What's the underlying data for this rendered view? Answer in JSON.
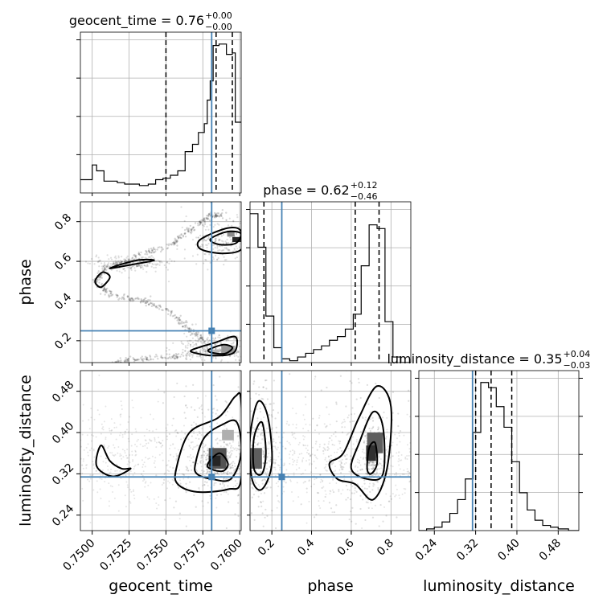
{
  "chart_data": {
    "type": "corner",
    "parameters": [
      "geocent_time",
      "phase",
      "luminosity_distance"
    ],
    "axis_labels": {
      "geocent_time": "geocent_time",
      "phase": "phase",
      "luminosity_distance": "luminosity_distance"
    },
    "ranges": {
      "geocent_time": [
        0.7492,
        0.7601
      ],
      "phase": [
        0.09,
        0.9
      ],
      "luminosity_distance": [
        0.21,
        0.52
      ]
    },
    "ticks": {
      "geocent_time": {
        "values": [
          0.75,
          0.7525,
          0.755,
          0.7575,
          0.76
        ],
        "labels": [
          "0.7500",
          "0.7525",
          "0.7550",
          "0.7575",
          "0.7600"
        ]
      },
      "phase": {
        "values": [
          0.2,
          0.4,
          0.6,
          0.8
        ],
        "labels": [
          "0.2",
          "0.4",
          "0.6",
          "0.8"
        ]
      },
      "luminosity_distance": {
        "values": [
          0.24,
          0.32,
          0.4,
          0.48
        ],
        "labels": [
          "0.24",
          "0.32",
          "0.40",
          "0.48"
        ]
      }
    },
    "titles": {
      "geocent_time": {
        "text": "geocent_time = 0.76",
        "plus": "+0.00",
        "minus": "−0.00"
      },
      "phase": {
        "text": "phase = 0.62",
        "plus": "+0.12",
        "minus": "−0.46"
      },
      "luminosity_distance": {
        "text": "luminosity_distance = 0.35",
        "plus": "+0.04",
        "minus": "−0.03"
      }
    },
    "truths": {
      "geocent_time": 0.7581,
      "phase": 0.25,
      "luminosity_distance": 0.314
    },
    "quantiles": {
      "geocent_time": [
        0.755,
        0.7584,
        0.7595
      ],
      "phase": [
        0.16,
        0.62,
        0.74
      ],
      "luminosity_distance": [
        0.32,
        0.35,
        0.39
      ]
    },
    "histograms": {
      "geocent_time": {
        "edges": [
          0.7492,
          0.75,
          0.7503,
          0.7508,
          0.7513,
          0.7517,
          0.7522,
          0.7527,
          0.7532,
          0.7538,
          0.7543,
          0.7548,
          0.7553,
          0.7558,
          0.7563,
          0.7568,
          0.7572,
          0.7576,
          0.7578,
          0.758,
          0.7582,
          0.7586,
          0.7591,
          0.7595,
          0.7597,
          0.7601
        ],
        "counts": [
          9,
          19,
          15,
          8,
          8,
          7,
          6,
          6,
          5,
          6,
          9,
          10,
          12,
          15,
          28,
          33,
          41,
          47,
          63,
          76,
          100,
          101,
          94,
          95,
          48
        ]
      },
      "phase": {
        "edges": [
          0.09,
          0.13,
          0.17,
          0.21,
          0.25,
          0.29,
          0.33,
          0.37,
          0.41,
          0.45,
          0.49,
          0.53,
          0.57,
          0.61,
          0.65,
          0.69,
          0.73,
          0.77,
          0.81,
          0.85,
          0.9
        ],
        "counts": [
          80,
          62,
          25,
          8,
          2,
          1,
          3,
          5,
          7,
          9,
          12,
          14,
          18,
          26,
          52,
          74,
          72,
          22,
          3,
          0
        ]
      },
      "luminosity_distance": {
        "edges": [
          0.21,
          0.225,
          0.24,
          0.255,
          0.27,
          0.285,
          0.3,
          0.315,
          0.33,
          0.345,
          0.36,
          0.375,
          0.39,
          0.405,
          0.42,
          0.435,
          0.45,
          0.465,
          0.48,
          0.5,
          0.52
        ],
        "counts": [
          0,
          1,
          2,
          5,
          10,
          18,
          30,
          57,
          86,
          83,
          72,
          60,
          40,
          22,
          12,
          6,
          3,
          2,
          1,
          0
        ]
      }
    },
    "panels_2d": [
      {
        "x": "geocent_time",
        "y": "phase",
        "hist2d": [
          {
            "x": 0.7598,
            "y": 0.71,
            "w": 0.0006,
            "h": 0.025,
            "shade": 0.95
          },
          {
            "x": 0.7594,
            "y": 0.74,
            "w": 0.0005,
            "h": 0.03,
            "shade": 0.5
          },
          {
            "x": 0.7592,
            "y": 0.155,
            "w": 0.0009,
            "h": 0.04,
            "shade": 0.45
          },
          {
            "x": 0.7583,
            "y": 0.14,
            "w": 0.0005,
            "h": 0.03,
            "shade": 0.3
          }
        ],
        "contours": [
          [
            [
              0.7572,
              0.7
            ],
            [
              0.7581,
              0.74
            ],
            [
              0.7594,
              0.77
            ],
            [
              0.7601,
              0.75
            ],
            [
              0.7601,
              0.66
            ],
            [
              0.7588,
              0.64
            ],
            [
              0.7574,
              0.66
            ]
          ],
          [
            [
              0.758,
              0.71
            ],
            [
              0.7589,
              0.745
            ],
            [
              0.7597,
              0.75
            ],
            [
              0.7601,
              0.735
            ],
            [
              0.7597,
              0.69
            ],
            [
              0.7586,
              0.685
            ]
          ],
          [
            [
              0.7512,
              0.565
            ],
            [
              0.753,
              0.605
            ],
            [
              0.7542,
              0.605
            ],
            [
              0.7528,
              0.585
            ]
          ],
          [
            [
              0.7502,
              0.5
            ],
            [
              0.7507,
              0.545
            ],
            [
              0.7512,
              0.52
            ],
            [
              0.7506,
              0.47
            ]
          ],
          [
            [
              0.7568,
              0.155
            ],
            [
              0.7583,
              0.19
            ],
            [
              0.7597,
              0.22
            ],
            [
              0.7596,
              0.14
            ],
            [
              0.7582,
              0.125
            ],
            [
              0.7569,
              0.14
            ]
          ],
          [
            [
              0.7579,
              0.155
            ],
            [
              0.7589,
              0.18
            ],
            [
              0.7595,
              0.165
            ],
            [
              0.759,
              0.135
            ],
            [
              0.7581,
              0.14
            ]
          ]
        ]
      },
      {
        "x": "geocent_time",
        "y": "luminosity_distance",
        "hist2d": [
          {
            "x": 0.7585,
            "y": 0.35,
            "w": 0.0012,
            "h": 0.04,
            "shade": 0.75
          },
          {
            "x": 0.7583,
            "y": 0.345,
            "w": 0.0008,
            "h": 0.02,
            "shade": 0.95
          },
          {
            "x": 0.7592,
            "y": 0.395,
            "w": 0.0008,
            "h": 0.02,
            "shade": 0.35
          }
        ],
        "contours": [
          [
            [
              0.7557,
              0.33
            ],
            [
              0.7566,
              0.4
            ],
            [
              0.7586,
              0.43
            ],
            [
              0.7597,
              0.47
            ],
            [
              0.7601,
              0.46
            ],
            [
              0.7601,
              0.31
            ],
            [
              0.7592,
              0.29
            ],
            [
              0.7571,
              0.285
            ],
            [
              0.7558,
              0.3
            ]
          ],
          [
            [
              0.757,
              0.34
            ],
            [
              0.7576,
              0.39
            ],
            [
              0.7588,
              0.415
            ],
            [
              0.7598,
              0.42
            ],
            [
              0.7601,
              0.36
            ],
            [
              0.7594,
              0.31
            ],
            [
              0.7581,
              0.31
            ],
            [
              0.7571,
              0.32
            ]
          ],
          [
            [
              0.7578,
              0.335
            ],
            [
              0.7586,
              0.36
            ],
            [
              0.7592,
              0.34
            ],
            [
              0.7588,
              0.325
            ]
          ],
          [
            [
              0.7503,
              0.335
            ],
            [
              0.7506,
              0.375
            ],
            [
              0.7512,
              0.345
            ],
            [
              0.752,
              0.33
            ],
            [
              0.7526,
              0.33
            ],
            [
              0.7514,
              0.315
            ]
          ]
        ]
      },
      {
        "x": "phase",
        "y": "luminosity_distance",
        "hist2d": [
          {
            "x": 0.12,
            "y": 0.35,
            "w": 0.06,
            "h": 0.04,
            "shade": 0.7
          },
          {
            "x": 0.72,
            "y": 0.38,
            "w": 0.08,
            "h": 0.04,
            "shade": 0.7
          },
          {
            "x": 0.7,
            "y": 0.36,
            "w": 0.05,
            "h": 0.03,
            "shade": 0.9
          }
        ],
        "contours": [
          [
            [
              0.1,
              0.31
            ],
            [
              0.09,
              0.39
            ],
            [
              0.13,
              0.46
            ],
            [
              0.18,
              0.43
            ],
            [
              0.2,
              0.34
            ],
            [
              0.15,
              0.29
            ]
          ],
          [
            [
              0.11,
              0.33
            ],
            [
              0.11,
              0.39
            ],
            [
              0.15,
              0.42
            ],
            [
              0.17,
              0.36
            ],
            [
              0.15,
              0.32
            ]
          ],
          [
            [
              0.49,
              0.34
            ],
            [
              0.56,
              0.36
            ],
            [
              0.64,
              0.43
            ],
            [
              0.73,
              0.49
            ],
            [
              0.8,
              0.45
            ],
            [
              0.78,
              0.33
            ],
            [
              0.71,
              0.27
            ],
            [
              0.62,
              0.3
            ],
            [
              0.53,
              0.31
            ]
          ],
          [
            [
              0.6,
              0.33
            ],
            [
              0.64,
              0.38
            ],
            [
              0.71,
              0.44
            ],
            [
              0.76,
              0.41
            ],
            [
              0.76,
              0.32
            ],
            [
              0.68,
              0.31
            ]
          ],
          [
            [
              0.68,
              0.33
            ],
            [
              0.69,
              0.37
            ],
            [
              0.72,
              0.38
            ],
            [
              0.73,
              0.34
            ],
            [
              0.7,
              0.32
            ]
          ]
        ]
      }
    ],
    "scatter_bands": [
      {
        "x": "geocent_time",
        "y": "phase",
        "path": [
          [
            0.7589,
            0.84
          ],
          [
            0.7578,
            0.82
          ],
          [
            0.7565,
            0.75
          ],
          [
            0.755,
            0.67
          ],
          [
            0.753,
            0.62
          ],
          [
            0.751,
            0.57
          ],
          [
            0.7502,
            0.5
          ],
          [
            0.7512,
            0.43
          ],
          [
            0.7535,
            0.4
          ],
          [
            0.7552,
            0.35
          ],
          [
            0.7566,
            0.26
          ],
          [
            0.7576,
            0.2
          ]
        ]
      },
      {
        "x": "geocent_time",
        "y": "phase",
        "path": [
          [
            0.7515,
            0.09
          ],
          [
            0.753,
            0.11
          ],
          [
            0.7555,
            0.12
          ],
          [
            0.758,
            0.15
          ],
          [
            0.7598,
            0.15
          ]
        ]
      }
    ]
  }
}
